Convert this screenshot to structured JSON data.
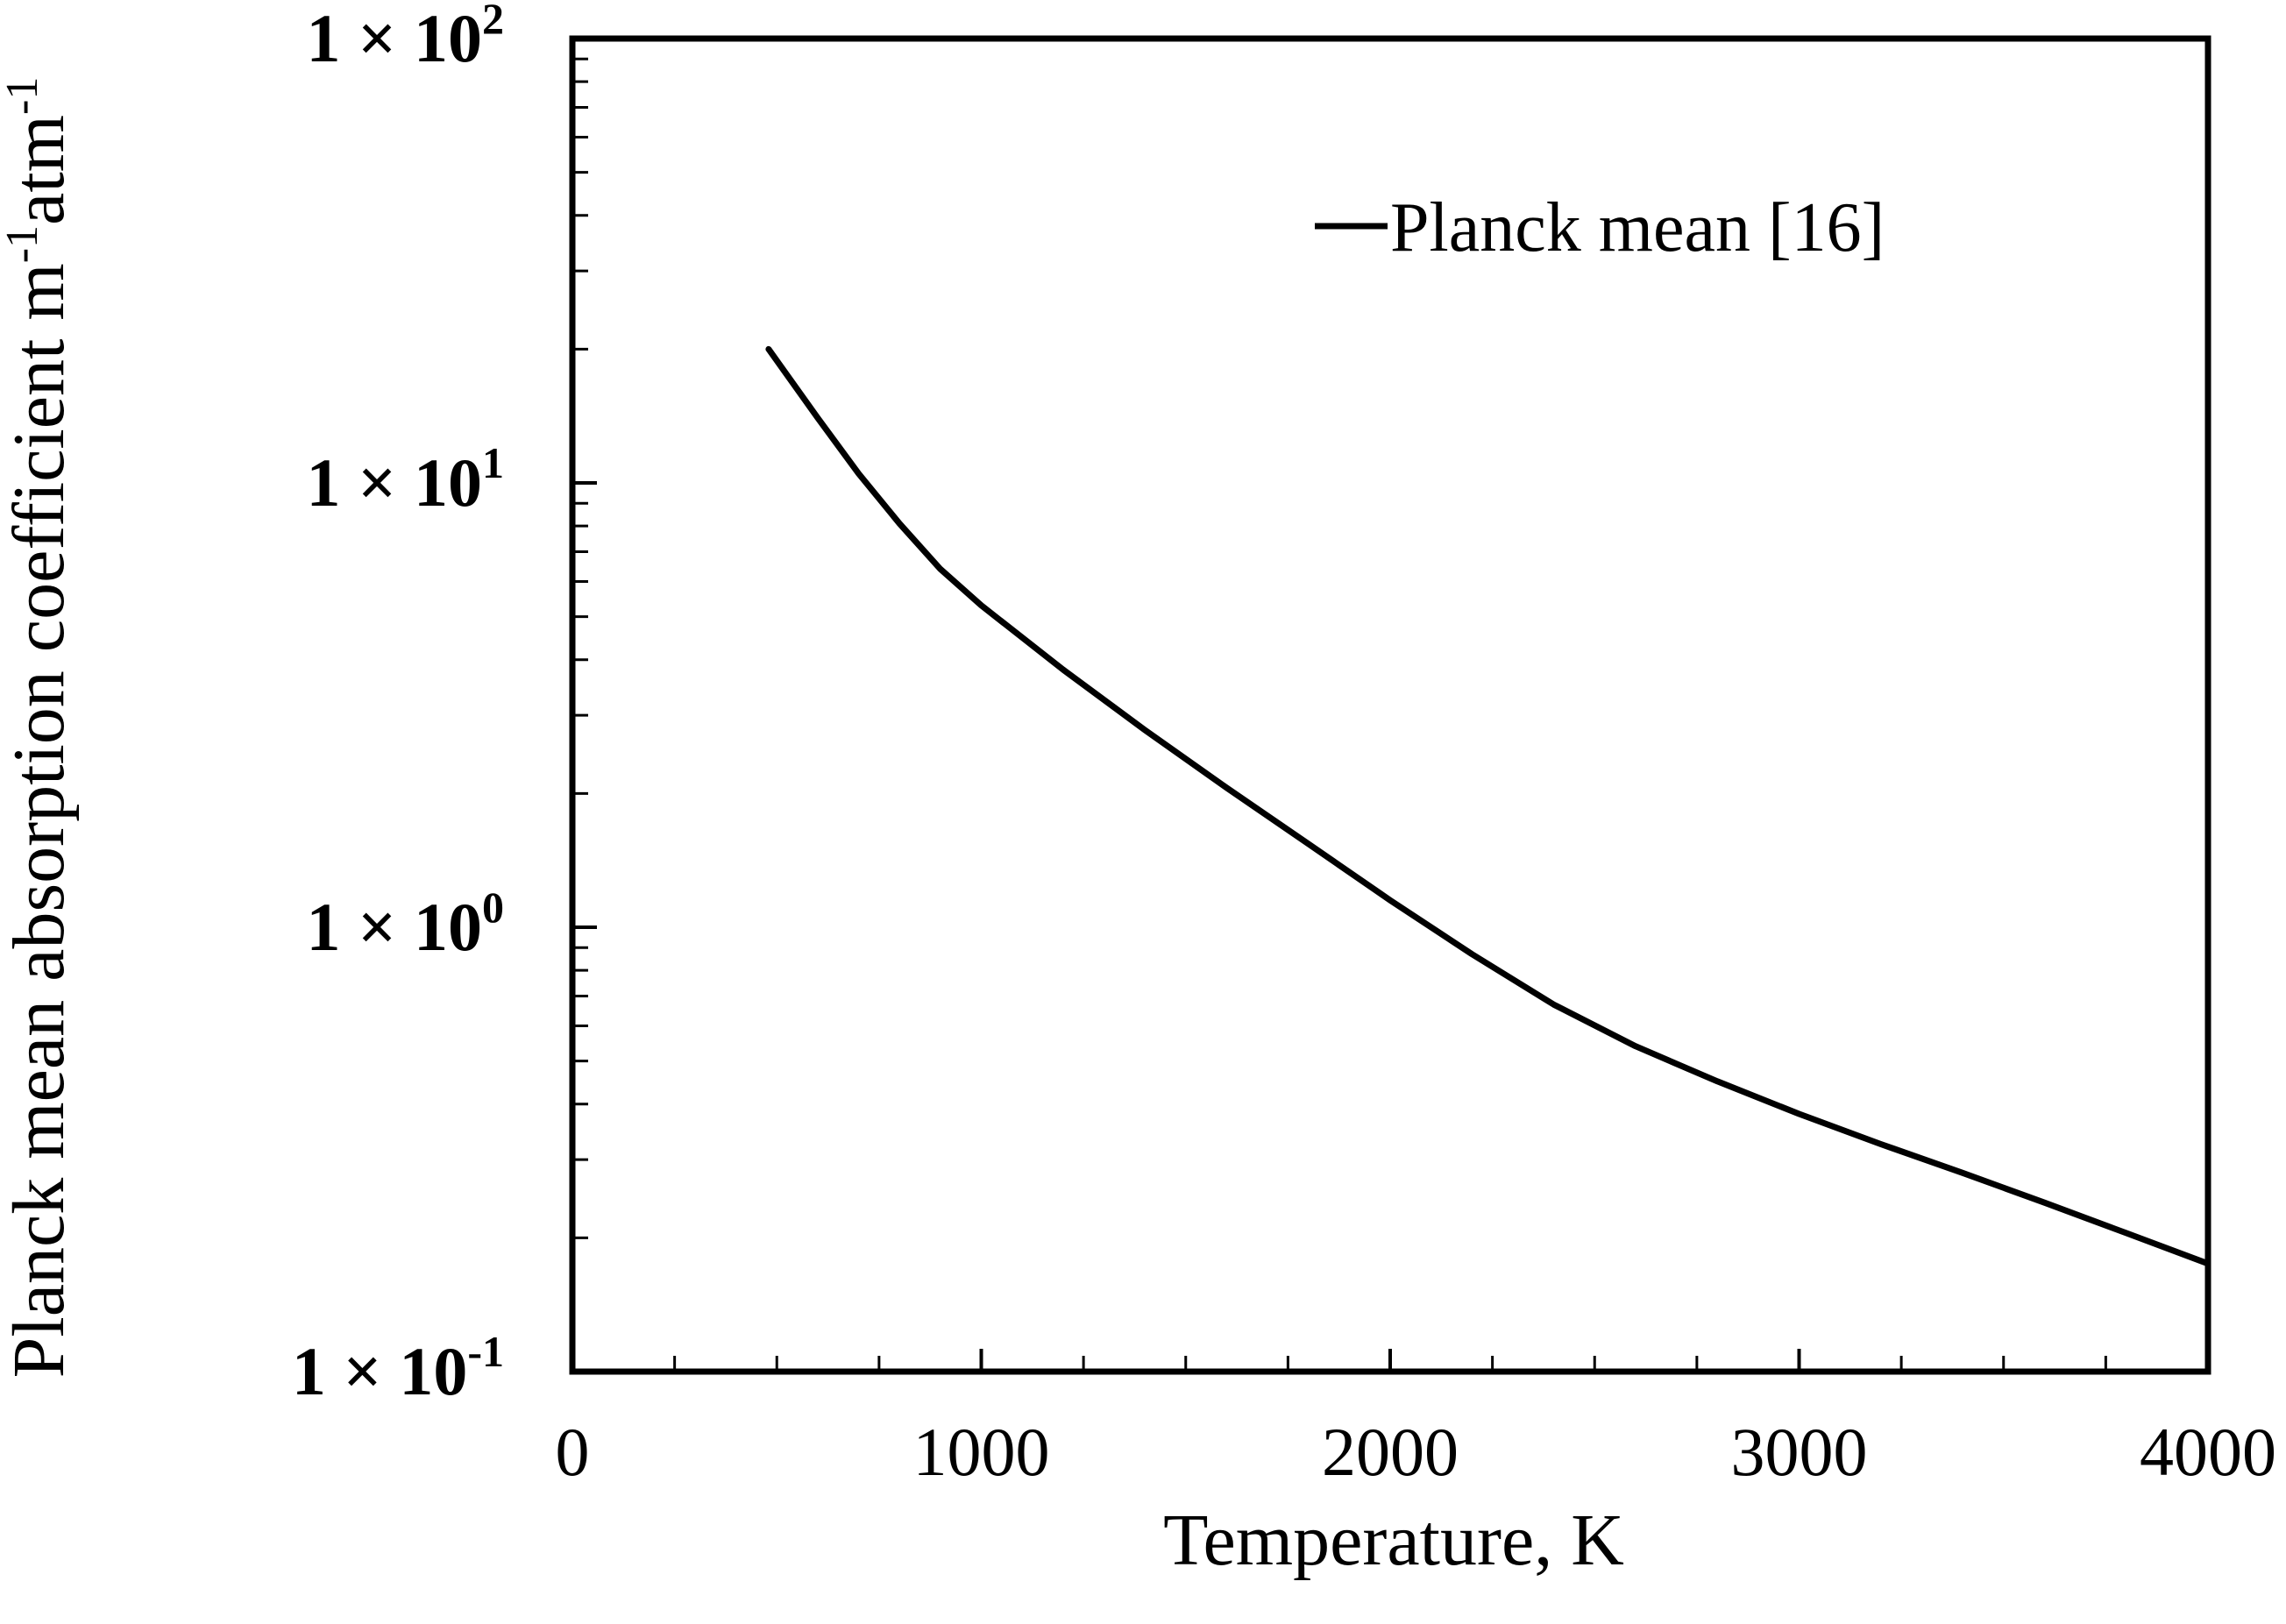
{
  "chart_data": {
    "type": "line",
    "title": "",
    "xlabel": "Temperature, K",
    "ylabel": "Planck mean absorption coefficient m",
    "ylabel_sup_1": "-1",
    "ylabel_mid": "atm",
    "ylabel_sup_2": "-1",
    "xlim": [
      0,
      4000
    ],
    "ylim": [
      0.1,
      100
    ],
    "yscale": "log",
    "grid": false,
    "legend_position": "top-right",
    "x_ticks": [
      {
        "value": 0,
        "label": "0"
      },
      {
        "value": 1000,
        "label": "1000"
      },
      {
        "value": 2000,
        "label": "2000"
      },
      {
        "value": 3000,
        "label": "3000"
      },
      {
        "value": 4000,
        "label": "4000"
      }
    ],
    "y_ticks": [
      {
        "value": 100,
        "base": "1 × 10",
        "exp": "2"
      },
      {
        "value": 10,
        "base": "1 × 10",
        "exp": "1"
      },
      {
        "value": 1,
        "base": "1 × 10",
        "exp": "0"
      },
      {
        "value": 0.1,
        "base": "1 × 10",
        "exp": "-1"
      }
    ],
    "series": [
      {
        "name": "Planck mean [16]",
        "color": "#000000",
        "x": [
          480,
          600,
          700,
          800,
          900,
          1000,
          1200,
          1400,
          1600,
          1800,
          2000,
          2200,
          2400,
          2600,
          2800,
          3000,
          3200,
          3400,
          3600,
          3800,
          4000
        ],
        "y": [
          20,
          14,
          10.5,
          8.1,
          6.4,
          5.3,
          3.8,
          2.78,
          2.06,
          1.54,
          1.15,
          0.87,
          0.67,
          0.54,
          0.45,
          0.38,
          0.325,
          0.28,
          0.24,
          0.205,
          0.175
        ]
      }
    ]
  }
}
